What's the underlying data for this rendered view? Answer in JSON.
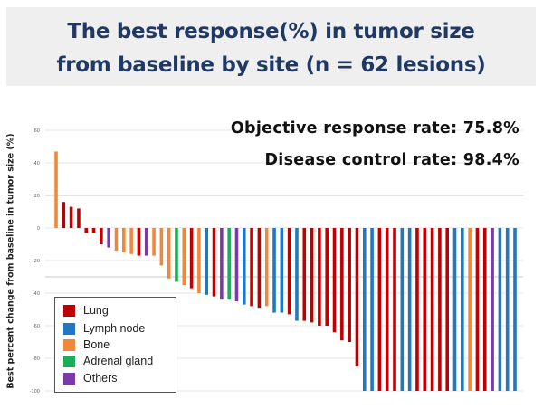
{
  "header": {
    "title_line1": "The best response(%) in tumor size",
    "title_line2": "from baseline by site (n = 62 lesions)"
  },
  "stats": {
    "orr": "Objective response rate: 75.8%",
    "dcr": "Disease control rate: 98.4%"
  },
  "chart_data": {
    "type": "bar",
    "title": "The best response(%) in tumor size from baseline by site (n = 62 lesions)",
    "xlabel": "",
    "ylabel": "Best percent change from baseline in tumor size (%)",
    "ylim": [
      -100,
      60
    ],
    "yticks": [
      60,
      40,
      20,
      0,
      -20,
      -40,
      -60,
      -80,
      -100
    ],
    "ytick_labels": [
      "60",
      "40",
      "20",
      "0",
      "-20",
      "-40",
      "-60",
      "-80",
      "-100"
    ],
    "reference_lines": [
      20,
      -30
    ],
    "grid": true,
    "legend_position": "bottom-left",
    "legend": [
      {
        "name": "Lung",
        "color": "#c00000"
      },
      {
        "name": "Lymph node",
        "color": "#1f78c1"
      },
      {
        "name": "Bone",
        "color": "#f0883a"
      },
      {
        "name": "Adrenal gland",
        "color": "#1aae5a"
      },
      {
        "name": "Others",
        "color": "#7a3aa8"
      }
    ],
    "values": [
      47,
      16,
      13,
      12,
      -3,
      -3,
      -10,
      -12,
      -14,
      -15,
      -16,
      -17,
      -17,
      -17,
      -23,
      -31,
      -33,
      -35,
      -37,
      -40,
      -41,
      -42,
      -44,
      -44,
      -45,
      -47,
      -48,
      -49,
      -48,
      -52,
      -52,
      -53,
      -57,
      -57,
      -58,
      -60,
      -60,
      -64,
      -69,
      -70,
      -85,
      -100,
      -100,
      -100,
      -100,
      -100,
      -100,
      -100,
      -100,
      -100,
      -100,
      -100,
      -100,
      -100,
      -100,
      -100,
      -100,
      -100,
      -100,
      -100,
      -100,
      -100
    ],
    "sites": [
      "Bone",
      "Lung",
      "Lung",
      "Lung",
      "Lung",
      "Lung",
      "Lung",
      "Others",
      "Bone",
      "Bone",
      "Bone",
      "Lung",
      "Others",
      "Bone",
      "Bone",
      "Bone",
      "Adrenal gland",
      "Bone",
      "Lung",
      "Bone",
      "Lymph node",
      "Lung",
      "Others",
      "Adrenal gland",
      "Others",
      "Lymph node",
      "Lung",
      "Lung",
      "Bone",
      "Lymph node",
      "Lymph node",
      "Lung",
      "Lymph node",
      "Lung",
      "Lung",
      "Lung",
      "Lung",
      "Lung",
      "Lung",
      "Lung",
      "Lung",
      "Lymph node",
      "Lymph node",
      "Lung",
      "Lung",
      "Lung",
      "Lymph node",
      "Lymph node",
      "Lung",
      "Lung",
      "Lung",
      "Lung",
      "Lung",
      "Lymph node",
      "Lymph node",
      "Bone",
      "Lung",
      "Lung",
      "Others",
      "Lymph node",
      "Lymph node",
      "Lymph node"
    ]
  }
}
